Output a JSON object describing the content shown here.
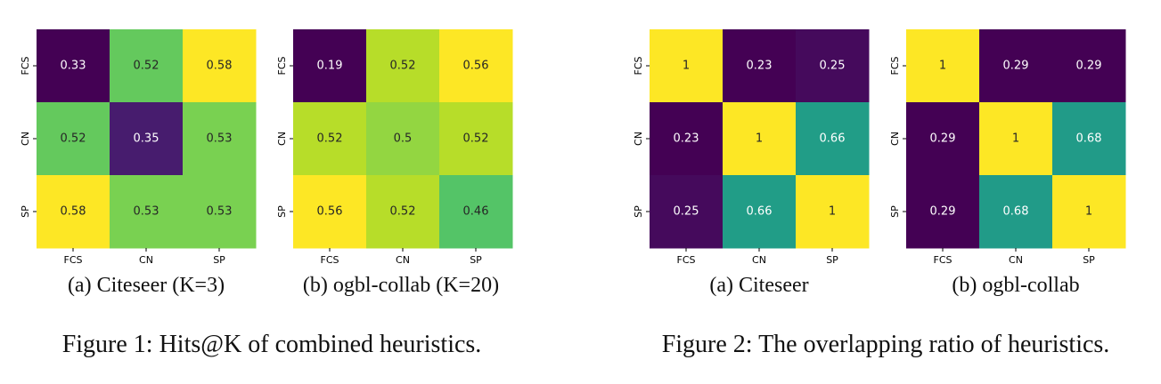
{
  "figures": [
    {
      "caption": "Figure 1: Hits@K of combined heuristics.",
      "panels": [
        {
          "label": "(a)",
          "name": "Citeseer (K=3)"
        },
        {
          "label": "(b)",
          "name": "ogbl-collab (K=20)"
        }
      ]
    },
    {
      "caption": "Figure 2: The overlapping ratio of heuristics.",
      "panels": [
        {
          "label": "(a)",
          "name": "Citeseer"
        },
        {
          "label": "(b)",
          "name": "ogbl-collab"
        }
      ]
    }
  ],
  "chart_data": [
    {
      "type": "heatmap",
      "title": "(a) Citeseer (K=3)",
      "x": [
        "FCS",
        "CN",
        "SP"
      ],
      "y": [
        "FCS",
        "CN",
        "SP"
      ],
      "values": [
        [
          0.33,
          0.52,
          0.58
        ],
        [
          0.52,
          0.35,
          0.53
        ],
        [
          0.58,
          0.53,
          0.53
        ]
      ],
      "colormap": "viridis",
      "vmin": 0.33,
      "vmax": 0.58
    },
    {
      "type": "heatmap",
      "title": "(b) ogbl-collab (K=20)",
      "x": [
        "FCS",
        "CN",
        "SP"
      ],
      "y": [
        "FCS",
        "CN",
        "SP"
      ],
      "values": [
        [
          0.19,
          0.52,
          0.56
        ],
        [
          0.52,
          0.5,
          0.52
        ],
        [
          0.56,
          0.52,
          0.46
        ]
      ],
      "colormap": "viridis",
      "vmin": 0.19,
      "vmax": 0.56
    },
    {
      "type": "heatmap",
      "title": "(a) Citeseer",
      "x": [
        "FCS",
        "CN",
        "SP"
      ],
      "y": [
        "FCS",
        "CN",
        "SP"
      ],
      "values": [
        [
          1,
          0.23,
          0.25
        ],
        [
          0.23,
          1,
          0.66
        ],
        [
          0.25,
          0.66,
          1
        ]
      ],
      "colormap": "viridis",
      "vmin": 0.23,
      "vmax": 1
    },
    {
      "type": "heatmap",
      "title": "(b) ogbl-collab",
      "x": [
        "FCS",
        "CN",
        "SP"
      ],
      "y": [
        "FCS",
        "CN",
        "SP"
      ],
      "values": [
        [
          1,
          0.29,
          0.29
        ],
        [
          0.29,
          1,
          0.68
        ],
        [
          0.29,
          0.68,
          1
        ]
      ],
      "colormap": "viridis",
      "vmin": 0.29,
      "vmax": 1
    }
  ]
}
